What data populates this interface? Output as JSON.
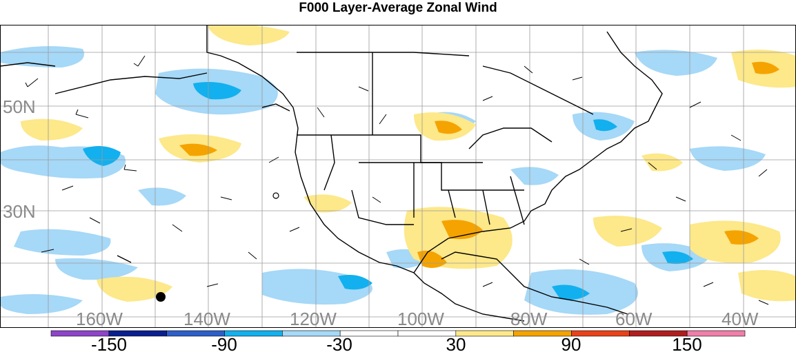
{
  "title": "F000 Layer-Average Zonal Wind",
  "lat_labels": [
    "50N",
    "30N"
  ],
  "lon_labels": [
    "160W",
    "140W",
    "120W",
    "100W",
    "80W",
    "60W",
    "40W"
  ],
  "colorbar": {
    "ticks": [
      "-150",
      "-90",
      "-30",
      "30",
      "90",
      "150"
    ],
    "colors": [
      "#8e44c9",
      "#0a1f8f",
      "#2c5fc8",
      "#12b0ee",
      "#a6d8f7",
      "#ffffff",
      "#ffffff",
      "#fde88a",
      "#f5a300",
      "#e8421a",
      "#b01d1d",
      "#f07ea9"
    ]
  },
  "colors": {
    "light_blue": "#a6d8f7",
    "mid_blue": "#12b0ee",
    "light_yellow": "#fde88a",
    "orange": "#f5a300",
    "grid": "#9a9a9a"
  }
}
